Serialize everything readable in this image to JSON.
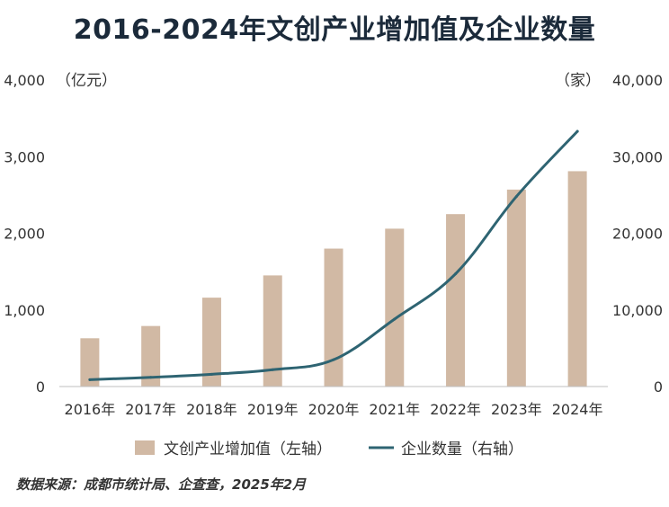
{
  "chart_data": {
    "type": "bar",
    "title": "2016-2024年文创产业增加值及企业数量",
    "categories": [
      "2016年",
      "2017年",
      "2018年",
      "2019年",
      "2020年",
      "2021年",
      "2022年",
      "2023年",
      "2024年"
    ],
    "series": [
      {
        "name": "文创产业增加值（左轴）",
        "type": "bar",
        "axis": "left",
        "color": "#d1b9a4",
        "values": [
          630,
          790,
          1160,
          1450,
          1800,
          2060,
          2250,
          2570,
          2810
        ]
      },
      {
        "name": "企业数量（右轴）",
        "type": "line",
        "axis": "right",
        "color": "#2e6472",
        "values": [
          900,
          1200,
          1600,
          2200,
          3500,
          8800,
          14700,
          24800,
          33300
        ]
      }
    ],
    "left_axis": {
      "unit": "（亿元）",
      "range": [
        0,
        4000
      ],
      "ticks": [
        0,
        1000,
        2000,
        3000,
        4000
      ],
      "tick_labels": [
        "0",
        "1,000",
        "2,000",
        "3,000",
        "4,000"
      ]
    },
    "right_axis": {
      "unit": "（家）",
      "range": [
        0,
        40000
      ],
      "ticks": [
        0,
        10000,
        20000,
        30000,
        40000
      ],
      "tick_labels": [
        "0",
        "10,000",
        "20,000",
        "30,000",
        "40,000"
      ]
    },
    "grid": false,
    "legend": "bottom"
  },
  "source": "数据来源：成都市统计局、企查查，2025年2月"
}
